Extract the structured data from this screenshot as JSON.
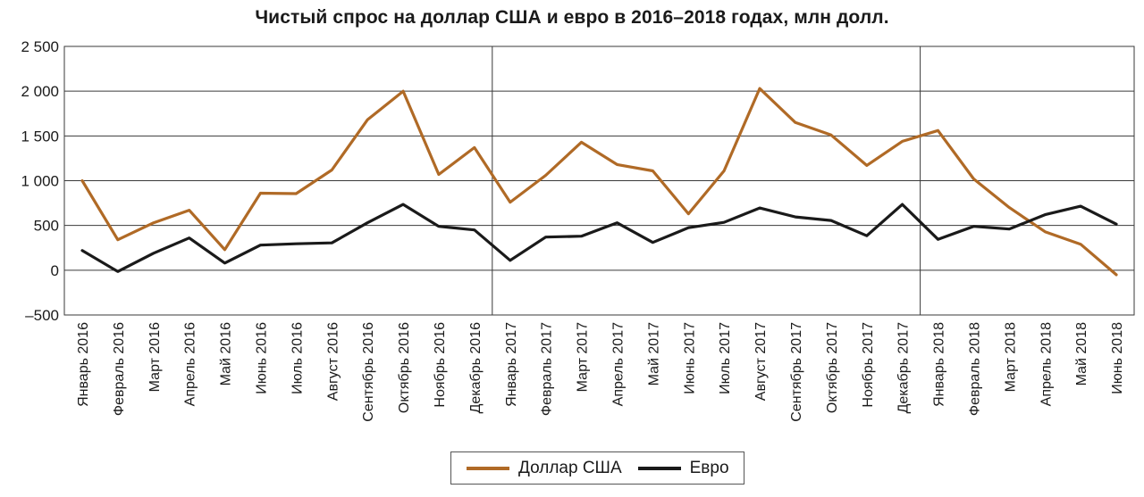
{
  "chart_data": {
    "type": "line",
    "title": "Чистый спрос на доллар США и евро в 2016–2018 годах, млн долл.",
    "xlabel": "",
    "ylabel": "",
    "ylim": [
      -500,
      2500
    ],
    "yticks": [
      2500,
      2000,
      1500,
      1000,
      500,
      0,
      -500
    ],
    "ytick_labels": [
      "2 500",
      "2 000",
      "1 500",
      "1 000",
      "500",
      "0",
      "–500"
    ],
    "grid": true,
    "legend_position": "bottom",
    "categories": [
      "Январь 2016",
      "Февраль 2016",
      "Март 2016",
      "Апрель 2016",
      "Май 2016",
      "Июнь 2016",
      "Июль 2016",
      "Август 2016",
      "Сентябрь 2016",
      "Октябрь 2016",
      "Ноябрь 2016",
      "Декабрь 2016",
      "Январь 2017",
      "Февраль 2017",
      "Март 2017",
      "Апрель 2017",
      "Май 2017",
      "Июнь 2017",
      "Июль 2017",
      "Август 2017",
      "Сентябрь 2017",
      "Октябрь 2017",
      "Ноябрь 2017",
      "Декабрь 2017",
      "Январь 2018",
      "Февраль 2018",
      "Март 2018",
      "Апрель 2018",
      "Май 2018",
      "Июнь 2018"
    ],
    "series": [
      {
        "name": "Доллар США",
        "color": "#b06a26",
        "values": [
          1000,
          340,
          530,
          670,
          230,
          860,
          855,
          1120,
          1680,
          2000,
          1070,
          1370,
          760,
          1060,
          1430,
          1180,
          1110,
          630,
          1110,
          2030,
          1650,
          1510,
          1170,
          1440,
          1560,
          1020,
          700,
          430,
          290,
          -50
        ]
      },
      {
        "name": "Евро",
        "color": "#1a1a1a",
        "values": [
          220,
          -15,
          190,
          360,
          80,
          280,
          295,
          305,
          530,
          735,
          490,
          450,
          110,
          370,
          380,
          530,
          310,
          475,
          535,
          695,
          595,
          555,
          385,
          735,
          345,
          490,
          460,
          620,
          715,
          515
        ]
      }
    ]
  }
}
